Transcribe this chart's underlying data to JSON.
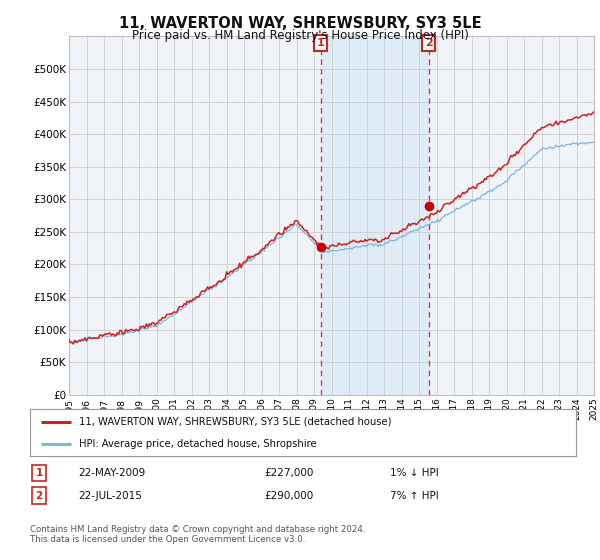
{
  "title": "11, WAVERTON WAY, SHREWSBURY, SY3 5LE",
  "subtitle": "Price paid vs. HM Land Registry's House Price Index (HPI)",
  "legend_line1": "11, WAVERTON WAY, SHREWSBURY, SY3 5LE (detached house)",
  "legend_line2": "HPI: Average price, detached house, Shropshire",
  "sale1_date": "22-MAY-2009",
  "sale1_price": 227000,
  "sale1_label": "1% ↓ HPI",
  "sale2_date": "22-JUL-2015",
  "sale2_price": 290000,
  "sale2_label": "7% ↑ HPI",
  "footnote": "Contains HM Land Registry data © Crown copyright and database right 2024.\nThis data is licensed under the Open Government Licence v3.0.",
  "hpi_color": "#7ab8d9",
  "price_color": "#cc2222",
  "sale_dot_color": "#cc0000",
  "background_color": "#ffffff",
  "plot_bg_color": "#f0f4f8",
  "shade_color": "#d8eaf8",
  "grid_color": "#cccccc",
  "ylim": [
    0,
    550000
  ],
  "yticks": [
    0,
    50000,
    100000,
    150000,
    200000,
    250000,
    300000,
    350000,
    400000,
    450000,
    500000
  ],
  "year_start": 1995,
  "year_end": 2025,
  "sale1_year": 2009.38,
  "sale2_year": 2015.55
}
